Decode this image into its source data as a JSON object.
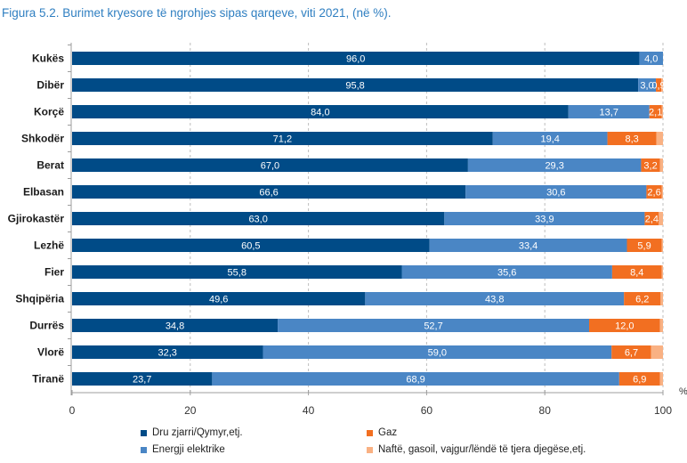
{
  "chart_data": {
    "type": "bar",
    "orientation": "horizontal",
    "stacked": true,
    "title": "Figura 5.2. Burimet kryesore të ngrohjes sipas qarqeve, viti 2021, (në %).",
    "xlabel": "",
    "ylabel": "",
    "unit_label": "%",
    "xlim": [
      0,
      100
    ],
    "xticks": [
      "0",
      "20",
      "40",
      "60",
      "80",
      "100"
    ],
    "xtick_values": [
      0,
      20,
      40,
      60,
      80,
      100
    ],
    "grid": "vertical-dashed",
    "legend_position": "bottom",
    "categories": [
      "Kukës",
      "Dibër",
      "Korçë",
      "Shkodër",
      "Berat",
      "Elbasan",
      "Gjirokastër",
      "Lezhë",
      "Fier",
      "Shqipëria",
      "Durrës",
      "Vlorë",
      "Tiranë"
    ],
    "series": [
      {
        "name": "Dru zjarri/Qymyr,etj.",
        "color": "#004b87",
        "values": [
          96.0,
          95.8,
          84.0,
          71.2,
          67.0,
          66.6,
          63.0,
          60.5,
          55.8,
          49.6,
          34.8,
          32.3,
          23.7
        ],
        "labels": [
          "96,0",
          "95,8",
          "84,0",
          "71,2",
          "67,0",
          "66,6",
          "63,0",
          "60,5",
          "55,8",
          "49,6",
          "34,8",
          "32,3",
          "23,7"
        ]
      },
      {
        "name": "Energji elektrike",
        "color": "#4a86c5",
        "values": [
          4.0,
          3.0,
          13.7,
          19.4,
          29.3,
          30.6,
          33.9,
          33.4,
          35.6,
          43.8,
          52.7,
          59.0,
          68.9
        ],
        "labels": [
          "4,0",
          "3,0",
          "13,7",
          "19,4",
          "29,3",
          "30,6",
          "33,9",
          "33,4",
          "35,6",
          "43,8",
          "52,7",
          "59,0",
          "68,9"
        ]
      },
      {
        "name": "Gaz",
        "color": "#f26f21",
        "values": [
          0.0,
          0.9,
          2.1,
          8.3,
          3.2,
          2.6,
          2.4,
          5.9,
          8.4,
          6.2,
          12.0,
          6.7,
          6.9
        ],
        "labels": [
          "",
          "0,9",
          "2,1",
          "8,3",
          "3,2",
          "2,6",
          "2,4",
          "5,9",
          "8,4",
          "6,2",
          "12,0",
          "6,7",
          "6,9"
        ]
      },
      {
        "name": "Naftë, gasoil, vajgur/lëndë të tjera djegëse,etj.",
        "color": "#f9b183",
        "values": [
          0.0,
          0.3,
          0.2,
          1.1,
          0.5,
          0.2,
          0.7,
          0.2,
          0.2,
          0.4,
          0.5,
          2.0,
          0.5
        ],
        "labels": [
          "",
          "",
          "",
          "",
          "",
          "",
          "",
          "",
          "",
          "",
          "",
          "",
          ""
        ]
      }
    ]
  }
}
